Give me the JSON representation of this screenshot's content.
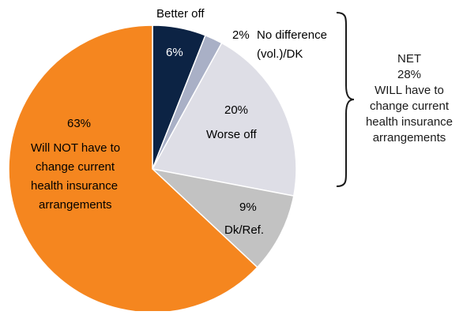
{
  "chart_data": {
    "type": "pie",
    "slices": [
      {
        "label": "Better off",
        "value": 6,
        "value_label": "6%",
        "color": "#0c2344"
      },
      {
        "label": "No difference (vol.)/DK",
        "value": 2,
        "value_label": "2%",
        "color": "#a9b0c6"
      },
      {
        "label": "Worse off",
        "value": 20,
        "value_label": "20%",
        "color": "#dedee6"
      },
      {
        "label": "Dk/Ref.",
        "value": 9,
        "value_label": "9%",
        "color": "#c2c2c2"
      },
      {
        "label": "Will NOT have to change current health insurance arrangements",
        "value": 63,
        "value_label": "63%",
        "color": "#f5861f"
      }
    ],
    "annotation": {
      "lines": [
        "NET",
        "28%",
        "WILL have to",
        "change current",
        "health insurance",
        "arrangements"
      ]
    }
  }
}
